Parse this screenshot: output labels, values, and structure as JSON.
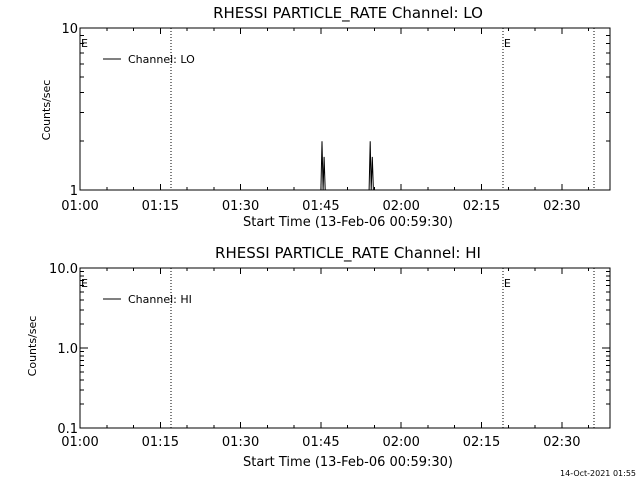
{
  "chart_data": [
    {
      "type": "line",
      "title": "RHESSI PARTICLE_RATE Channel: LO",
      "xlabel": "Start Time (13-Feb-06 00:59:30)",
      "ylabel": "Counts/sec",
      "yscale": "log",
      "ylim": [
        1,
        10
      ],
      "xlim": [
        "01:00",
        "02:39"
      ],
      "x_ticks": [
        "01:00",
        "01:15",
        "01:30",
        "01:45",
        "02:00",
        "02:15",
        "02:30"
      ],
      "y_ticks": [
        "1",
        "10"
      ],
      "grid": false,
      "legend": "top-left",
      "series": [
        {
          "name": "Channel: LO",
          "x": [
            "01:45",
            "01:45.2",
            "01:45.4",
            "01:45.6",
            "01:45.8",
            "01:54",
            "01:54.2",
            "01:54.4",
            "01:54.6",
            "01:54.8"
          ],
          "values": [
            1,
            2,
            1,
            1.6,
            1,
            1,
            2,
            1,
            1.6,
            1
          ]
        }
      ],
      "event_lines": [
        "01:17",
        "02:19",
        "02:36"
      ],
      "event_markers": [
        {
          "x": "01:00",
          "label": "E"
        },
        {
          "x": "02:19",
          "label": "E"
        }
      ]
    },
    {
      "type": "line",
      "title": "RHESSI PARTICLE_RATE Channel: HI",
      "xlabel": "Start Time (13-Feb-06 00:59:30)",
      "ylabel": "Counts/sec",
      "yscale": "log",
      "ylim": [
        0.1,
        10
      ],
      "xlim": [
        "01:00",
        "02:39"
      ],
      "x_ticks": [
        "01:00",
        "01:15",
        "01:30",
        "01:45",
        "02:00",
        "02:15",
        "02:30"
      ],
      "y_ticks": [
        "0.1",
        "1.0",
        "10.0"
      ],
      "grid": false,
      "legend": "top-left",
      "series": [
        {
          "name": "Channel: HI",
          "x": [],
          "values": []
        }
      ],
      "event_lines": [
        "01:17",
        "02:19",
        "02:36"
      ],
      "event_markers": [
        {
          "x": "01:00",
          "label": "E"
        },
        {
          "x": "02:19",
          "label": "E"
        }
      ]
    }
  ],
  "footer": {
    "timestamp": "14-Oct-2021 01:55"
  }
}
